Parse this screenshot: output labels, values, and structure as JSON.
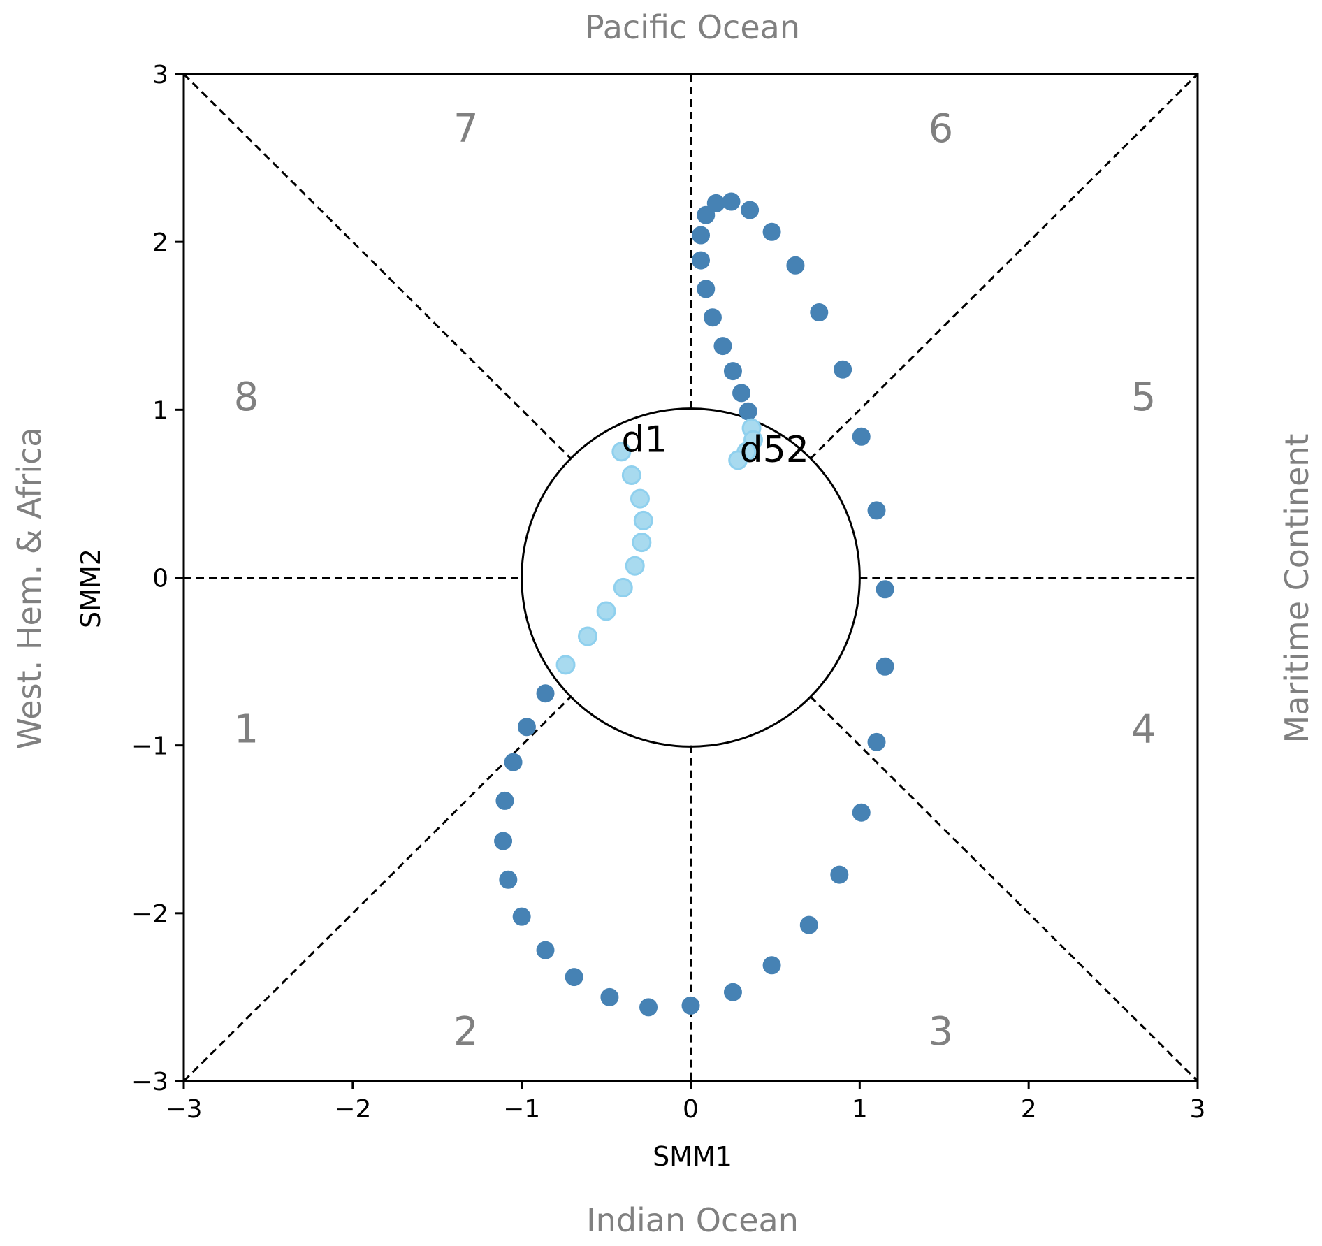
{
  "regions": {
    "top": "Pacific Ocean",
    "bottom": "Indian Ocean",
    "left": "West. Hem. & Africa",
    "right": "Maritime Continent"
  },
  "phases": [
    {
      "label": "1",
      "x": -2.63,
      "y": -0.9
    },
    {
      "label": "2",
      "x": -1.33,
      "y": -2.7
    },
    {
      "label": "3",
      "x": 1.48,
      "y": -2.7
    },
    {
      "label": "4",
      "x": 2.68,
      "y": -0.9
    },
    {
      "label": "5",
      "x": 2.68,
      "y": 1.08
    },
    {
      "label": "6",
      "x": 1.48,
      "y": 2.68
    },
    {
      "label": "7",
      "x": -1.33,
      "y": 2.68
    },
    {
      "label": "8",
      "x": -2.63,
      "y": 1.08
    }
  ],
  "chart_data": {
    "type": "scatter",
    "xlabel": "SMM1",
    "ylabel": "SMM2",
    "xlim": [
      -3,
      3
    ],
    "ylim": [
      -3,
      3
    ],
    "xticks": [
      -3,
      -2,
      -1,
      0,
      1,
      2,
      3
    ],
    "yticks": [
      -3,
      -2,
      -1,
      0,
      1,
      2,
      3
    ],
    "xtick_labels": [
      "−3",
      "−2",
      "−1",
      "0",
      "1",
      "2",
      "3"
    ],
    "ytick_labels": [
      "−3",
      "−2",
      "−1",
      "0",
      "1",
      "2",
      "3"
    ],
    "unit_circle_radius": 1,
    "grid": false,
    "colors": {
      "strong": "#4682b4",
      "weak": "#a8daef",
      "weak_edge": "#8fd0ee",
      "divider": "#000000",
      "region_text": "#808080"
    },
    "annotations": [
      {
        "text": "d1",
        "x": -0.41,
        "y": 0.8
      },
      {
        "text": "d52",
        "x": 0.29,
        "y": 0.74
      }
    ],
    "points": [
      {
        "x": -0.41,
        "y": 0.75
      },
      {
        "x": -0.35,
        "y": 0.61
      },
      {
        "x": -0.3,
        "y": 0.47
      },
      {
        "x": -0.28,
        "y": 0.34
      },
      {
        "x": -0.29,
        "y": 0.21
      },
      {
        "x": -0.33,
        "y": 0.07
      },
      {
        "x": -0.4,
        "y": -0.06
      },
      {
        "x": -0.5,
        "y": -0.2
      },
      {
        "x": -0.61,
        "y": -0.35
      },
      {
        "x": -0.74,
        "y": -0.52
      },
      {
        "x": -0.86,
        "y": -0.69
      },
      {
        "x": -0.97,
        "y": -0.89
      },
      {
        "x": -1.05,
        "y": -1.1
      },
      {
        "x": -1.1,
        "y": -1.33
      },
      {
        "x": -1.11,
        "y": -1.57
      },
      {
        "x": -1.08,
        "y": -1.8
      },
      {
        "x": -1.0,
        "y": -2.02
      },
      {
        "x": -0.86,
        "y": -2.22
      },
      {
        "x": -0.69,
        "y": -2.38
      },
      {
        "x": -0.48,
        "y": -2.5
      },
      {
        "x": -0.25,
        "y": -2.56
      },
      {
        "x": 0.0,
        "y": -2.55
      },
      {
        "x": 0.25,
        "y": -2.47
      },
      {
        "x": 0.48,
        "y": -2.31
      },
      {
        "x": 0.7,
        "y": -2.07
      },
      {
        "x": 0.88,
        "y": -1.77
      },
      {
        "x": 1.01,
        "y": -1.4
      },
      {
        "x": 1.1,
        "y": -0.98
      },
      {
        "x": 1.15,
        "y": -0.53
      },
      {
        "x": 1.15,
        "y": -0.07
      },
      {
        "x": 1.1,
        "y": 0.4
      },
      {
        "x": 1.01,
        "y": 0.84
      },
      {
        "x": 0.9,
        "y": 1.24
      },
      {
        "x": 0.76,
        "y": 1.58
      },
      {
        "x": 0.62,
        "y": 1.86
      },
      {
        "x": 0.48,
        "y": 2.06
      },
      {
        "x": 0.35,
        "y": 2.19
      },
      {
        "x": 0.24,
        "y": 2.24
      },
      {
        "x": 0.15,
        "y": 2.23
      },
      {
        "x": 0.09,
        "y": 2.16
      },
      {
        "x": 0.06,
        "y": 2.04
      },
      {
        "x": 0.06,
        "y": 1.89
      },
      {
        "x": 0.09,
        "y": 1.72
      },
      {
        "x": 0.13,
        "y": 1.55
      },
      {
        "x": 0.19,
        "y": 1.38
      },
      {
        "x": 0.25,
        "y": 1.23
      },
      {
        "x": 0.3,
        "y": 1.1
      },
      {
        "x": 0.34,
        "y": 0.99
      },
      {
        "x": 0.36,
        "y": 0.89
      },
      {
        "x": 0.37,
        "y": 0.82
      },
      {
        "x": 0.33,
        "y": 0.75
      },
      {
        "x": 0.28,
        "y": 0.7
      }
    ]
  }
}
